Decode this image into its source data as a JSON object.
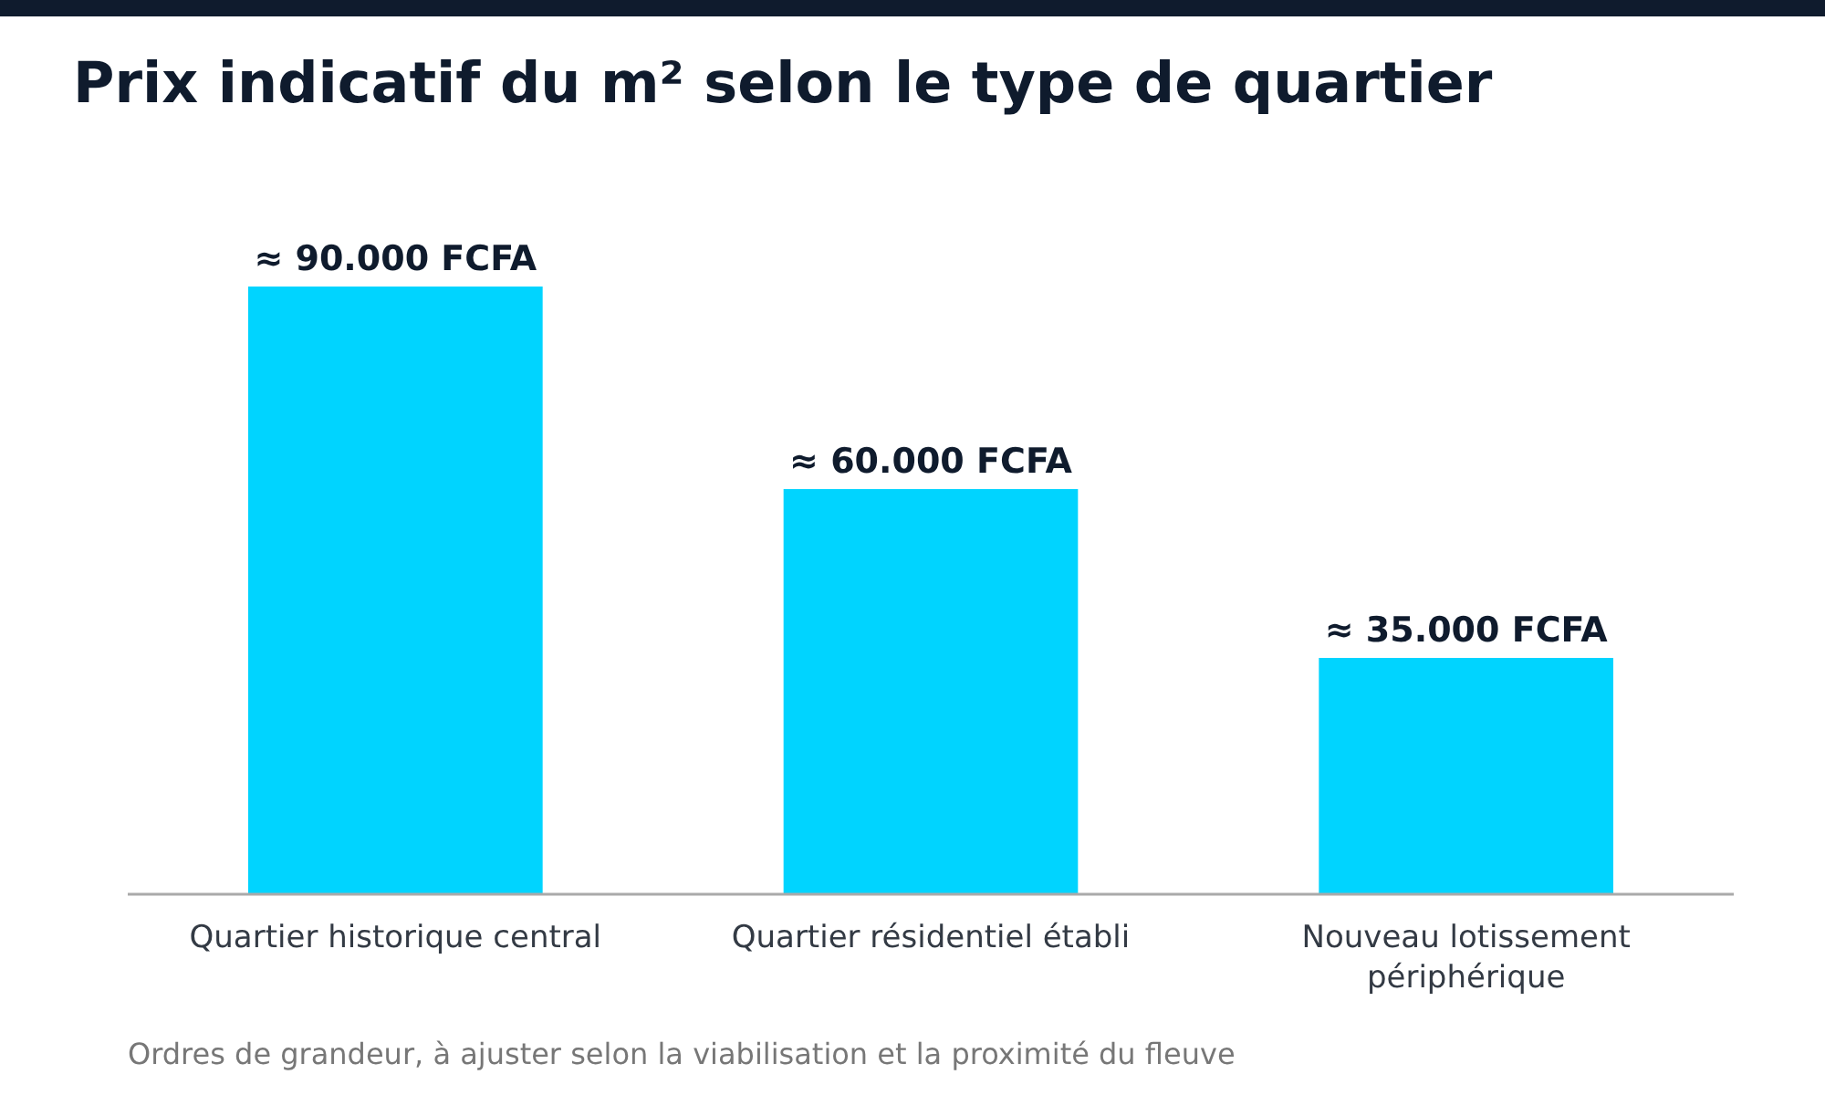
{
  "chart_data": {
    "type": "bar",
    "title": "Prix indicatif du m² selon le type de quartier",
    "categories": [
      "Quartier historique central",
      "Quartier résidentiel établi",
      "Nouveau lotissement périphérique"
    ],
    "values": [
      90000,
      60000,
      35000
    ],
    "value_labels": [
      "≈ 90.000 FCFA",
      "≈ 60.000 FCFA",
      "≈ 35.000 FCFA"
    ],
    "color": "#00d4ff",
    "annotations": [
      "Ordres de grandeur, à ajuster selon la viabilisation et la proximité du fleuve"
    ]
  }
}
